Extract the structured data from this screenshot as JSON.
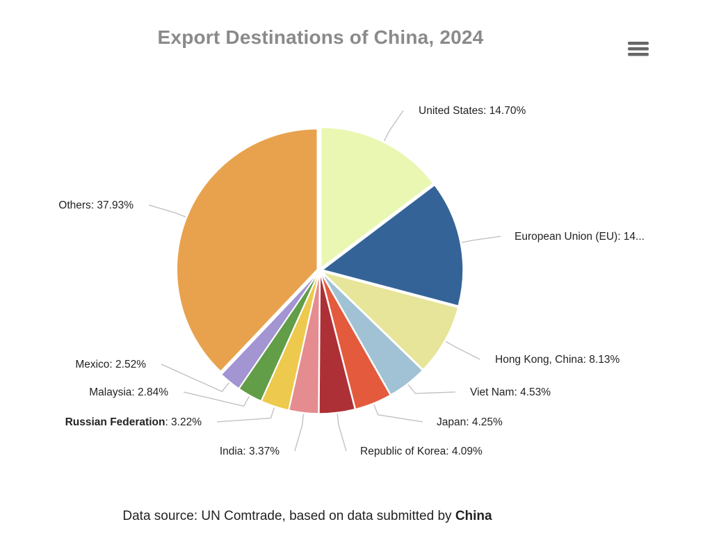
{
  "title": "Export Destinations of China, 2024",
  "menu": {
    "icon": "hamburger-menu-icon"
  },
  "footer": {
    "prefix": "Data source: UN Comtrade, based on data submitted by ",
    "reporter": "China"
  },
  "chart_data": {
    "type": "pie",
    "title": "Export Destinations of China, 2024",
    "unit": "%",
    "slices": [
      {
        "label": "United States",
        "value": 14.7,
        "display": "United States: 14.70%",
        "color": "#e9f7b2",
        "bold": false
      },
      {
        "label": "European Union (EU)",
        "value": 14.42,
        "display": "European Union (EU): 14...",
        "color": "#346497",
        "bold": false
      },
      {
        "label": "Hong Kong, China",
        "value": 8.13,
        "display": "Hong Kong, China: 8.13%",
        "color": "#e6e599",
        "bold": false
      },
      {
        "label": "Viet Nam",
        "value": 4.53,
        "display": "Viet Nam: 4.53%",
        "color": "#a1c2d4",
        "bold": false
      },
      {
        "label": "Japan",
        "value": 4.25,
        "display": "Japan: 4.25%",
        "color": "#e45a3d",
        "bold": false
      },
      {
        "label": "Republic of Korea",
        "value": 4.09,
        "display": "Republic of Korea: 4.09%",
        "color": "#ad3036",
        "bold": false
      },
      {
        "label": "India",
        "value": 3.37,
        "display": "India: 3.37%",
        "color": "#e48c90",
        "bold": false
      },
      {
        "label": "Russian Federation",
        "value": 3.22,
        "display": "Russian Federation: 3.22%",
        "color": "#edc94d",
        "bold": true
      },
      {
        "label": "Malaysia",
        "value": 2.84,
        "display": "Malaysia: 2.84%",
        "color": "#629d47",
        "bold": false
      },
      {
        "label": "Mexico",
        "value": 2.52,
        "display": "Mexico: 2.52%",
        "color": "#a394d2",
        "bold": false
      },
      {
        "label": "Others",
        "value": 37.93,
        "display": "Others: 37.93%",
        "color": "#e8a24d",
        "bold": false
      }
    ]
  }
}
